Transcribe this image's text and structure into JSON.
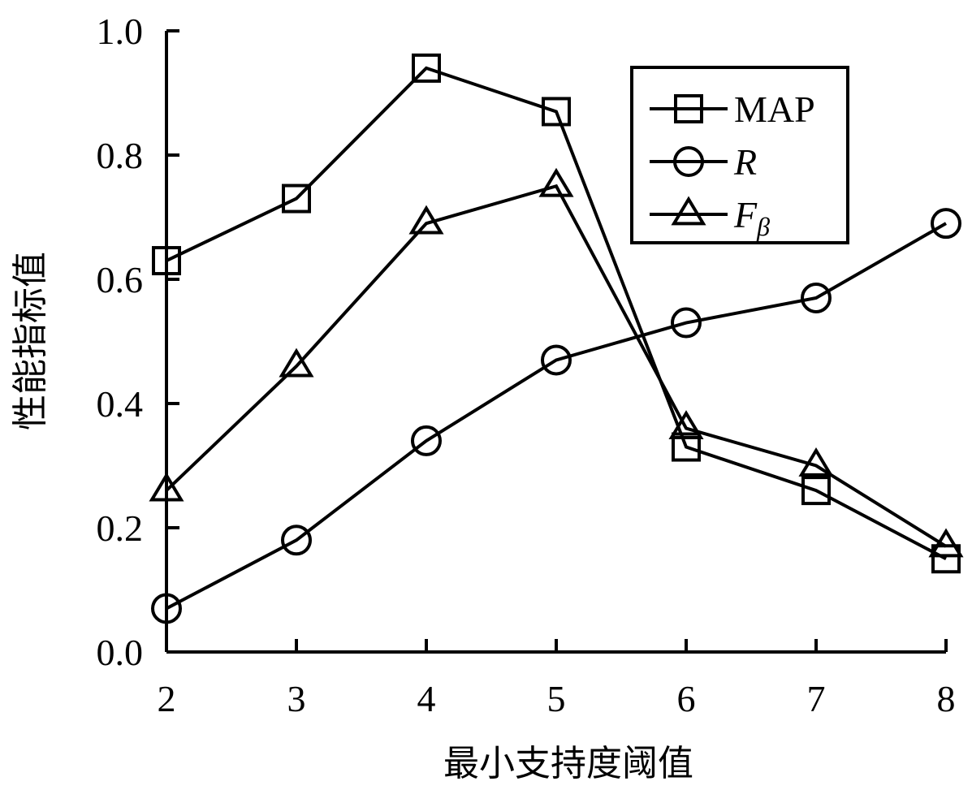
{
  "chart_data": {
    "type": "line",
    "xlabel": "最小支持度阈值",
    "ylabel": "性能指标值",
    "x": [
      2,
      3,
      4,
      5,
      6,
      7,
      8
    ],
    "xlim": [
      2,
      8
    ],
    "ylim": [
      0,
      1
    ],
    "x_ticks": [
      "2",
      "3",
      "4",
      "5",
      "6",
      "7",
      "8"
    ],
    "y_ticks": [
      "0.0",
      "0.2",
      "0.4",
      "0.6",
      "0.8",
      "1.0"
    ],
    "grid": false,
    "legend_position": "top-right",
    "series": [
      {
        "name": "MAP",
        "marker": "square",
        "values": [
          0.63,
          0.73,
          0.94,
          0.87,
          0.33,
          0.26,
          0.15
        ]
      },
      {
        "name": "R",
        "marker": "circle",
        "values": [
          0.07,
          0.18,
          0.34,
          0.47,
          0.53,
          0.57,
          0.69
        ]
      },
      {
        "name": "F",
        "name_subscript": "β",
        "marker": "triangle",
        "values": [
          0.26,
          0.46,
          0.69,
          0.75,
          0.36,
          0.3,
          0.17
        ]
      }
    ]
  }
}
